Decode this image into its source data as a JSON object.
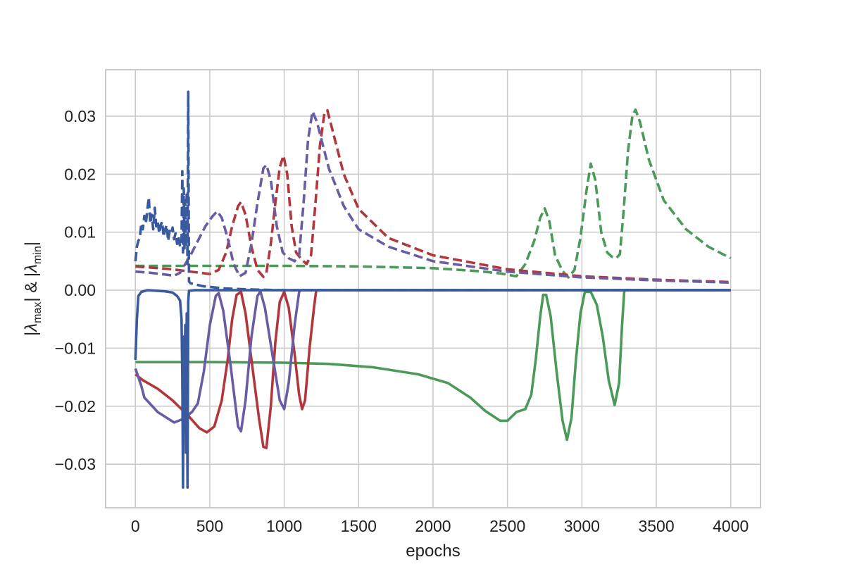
{
  "chart_data": {
    "type": "line",
    "title": "",
    "xlabel": "epochs",
    "ylabel": "|λmax| & |λmin|",
    "ylabel_parts": {
      "bar": "|",
      "lambda": "λ",
      "sub_max": "max",
      "amp": " & ",
      "sub_min": "min"
    },
    "xlim": [
      -200,
      4200
    ],
    "ylim": [
      -0.0375,
      0.038
    ],
    "grid": true,
    "legend": "none",
    "x_ticks": [
      0,
      500,
      1000,
      1500,
      2000,
      2500,
      3000,
      3500,
      4000
    ],
    "x_tick_labels": [
      "0",
      "500",
      "1000",
      "1500",
      "2000",
      "2500",
      "3000",
      "3500",
      "4000"
    ],
    "y_ticks": [
      -0.03,
      -0.02,
      -0.01,
      0.0,
      0.01,
      0.02,
      0.03
    ],
    "y_tick_labels": [
      "−0.03",
      "−0.02",
      "−0.01",
      "0.00",
      "0.01",
      "0.02",
      "0.03"
    ],
    "series": [
      {
        "color": "#4c9a5a",
        "style": "dashed",
        "points": [
          [
            0,
            0.0042
          ],
          [
            500,
            0.0042
          ],
          [
            1000,
            0.0042
          ],
          [
            1500,
            0.0041
          ],
          [
            2000,
            0.0038
          ],
          [
            2300,
            0.0033
          ],
          [
            2450,
            0.0029
          ],
          [
            2560,
            0.0024
          ],
          [
            2620,
            0.0045
          ],
          [
            2680,
            0.0085
          ],
          [
            2720,
            0.0125
          ],
          [
            2750,
            0.0141
          ],
          [
            2780,
            0.012
          ],
          [
            2820,
            0.006
          ],
          [
            2870,
            0.0033
          ],
          [
            2910,
            0.0022
          ],
          [
            2950,
            0.0035
          ],
          [
            2990,
            0.009
          ],
          [
            3030,
            0.017
          ],
          [
            3060,
            0.0218
          ],
          [
            3090,
            0.019
          ],
          [
            3130,
            0.01
          ],
          [
            3170,
            0.0065
          ],
          [
            3200,
            0.0058
          ],
          [
            3230,
            0.0055
          ],
          [
            3255,
            0.0062
          ],
          [
            3280,
            0.0135
          ],
          [
            3310,
            0.024
          ],
          [
            3340,
            0.0302
          ],
          [
            3360,
            0.0311
          ],
          [
            3390,
            0.029
          ],
          [
            3450,
            0.0225
          ],
          [
            3550,
            0.0155
          ],
          [
            3700,
            0.0105
          ],
          [
            3850,
            0.0075
          ],
          [
            4000,
            0.0055
          ]
        ]
      },
      {
        "color": "#4c9a5a",
        "style": "solid",
        "points": [
          [
            0,
            -0.0124
          ],
          [
            500,
            -0.0124
          ],
          [
            1000,
            -0.0125
          ],
          [
            1300,
            -0.0127
          ],
          [
            1600,
            -0.0133
          ],
          [
            1900,
            -0.0145
          ],
          [
            2100,
            -0.016
          ],
          [
            2250,
            -0.0185
          ],
          [
            2350,
            -0.0208
          ],
          [
            2450,
            -0.0225
          ],
          [
            2500,
            -0.0225
          ],
          [
            2560,
            -0.021
          ],
          [
            2620,
            -0.0205
          ],
          [
            2660,
            -0.018
          ],
          [
            2690,
            -0.012
          ],
          [
            2720,
            -0.0045
          ],
          [
            2740,
            -0.0008
          ],
          [
            2760,
            -0.0008
          ],
          [
            2790,
            -0.0045
          ],
          [
            2830,
            -0.014
          ],
          [
            2870,
            -0.0225
          ],
          [
            2900,
            -0.0258
          ],
          [
            2930,
            -0.022
          ],
          [
            2960,
            -0.012
          ],
          [
            2990,
            -0.004
          ],
          [
            3020,
            -0.0003
          ],
          [
            3060,
            -0.0003
          ],
          [
            3100,
            -0.0025
          ],
          [
            3140,
            -0.008
          ],
          [
            3180,
            -0.0155
          ],
          [
            3220,
            -0.0198
          ],
          [
            3250,
            -0.016
          ],
          [
            3270,
            -0.006
          ],
          [
            3285,
            0.0
          ],
          [
            3400,
            0.0
          ],
          [
            4000,
            0.0
          ]
        ]
      },
      {
        "color": "#b1373d",
        "style": "dashed",
        "points": [
          [
            0,
            0.0041
          ],
          [
            100,
            0.0039
          ],
          [
            250,
            0.0036
          ],
          [
            400,
            0.0031
          ],
          [
            500,
            0.0028
          ],
          [
            560,
            0.0035
          ],
          [
            610,
            0.0065
          ],
          [
            650,
            0.011
          ],
          [
            690,
            0.0145
          ],
          [
            710,
            0.0152
          ],
          [
            740,
            0.013
          ],
          [
            780,
            0.0075
          ],
          [
            820,
            0.0035
          ],
          [
            860,
            0.0023
          ],
          [
            880,
            0.003
          ],
          [
            910,
            0.008
          ],
          [
            940,
            0.015
          ],
          [
            970,
            0.0212
          ],
          [
            995,
            0.0232
          ],
          [
            1020,
            0.02
          ],
          [
            1050,
            0.011
          ],
          [
            1080,
            0.0065
          ],
          [
            1110,
            0.0055
          ],
          [
            1150,
            0.0045
          ],
          [
            1180,
            0.006
          ],
          [
            1210,
            0.015
          ],
          [
            1240,
            0.025
          ],
          [
            1270,
            0.0305
          ],
          [
            1290,
            0.031
          ],
          [
            1320,
            0.028
          ],
          [
            1400,
            0.02
          ],
          [
            1500,
            0.014
          ],
          [
            1700,
            0.009
          ],
          [
            2000,
            0.006
          ],
          [
            2500,
            0.0036
          ],
          [
            3000,
            0.0024
          ],
          [
            3500,
            0.0018
          ],
          [
            4000,
            0.0014
          ]
        ]
      },
      {
        "color": "#b1373d",
        "style": "solid",
        "points": [
          [
            0,
            -0.0145
          ],
          [
            50,
            -0.0155
          ],
          [
            150,
            -0.017
          ],
          [
            250,
            -0.019
          ],
          [
            350,
            -0.0215
          ],
          [
            430,
            -0.0238
          ],
          [
            480,
            -0.0245
          ],
          [
            530,
            -0.0235
          ],
          [
            580,
            -0.019
          ],
          [
            620,
            -0.012
          ],
          [
            650,
            -0.005
          ],
          [
            680,
            -0.0008
          ],
          [
            710,
            -0.0003
          ],
          [
            740,
            -0.004
          ],
          [
            780,
            -0.012
          ],
          [
            830,
            -0.022
          ],
          [
            860,
            -0.027
          ],
          [
            880,
            -0.0272
          ],
          [
            910,
            -0.02
          ],
          [
            940,
            -0.009
          ],
          [
            970,
            -0.002
          ],
          [
            1000,
            -0.0003
          ],
          [
            1030,
            -0.003
          ],
          [
            1070,
            -0.011
          ],
          [
            1100,
            -0.018
          ],
          [
            1120,
            -0.0205
          ],
          [
            1140,
            -0.019
          ],
          [
            1170,
            -0.01
          ],
          [
            1200,
            -0.003
          ],
          [
            1215,
            0.0
          ],
          [
            1300,
            0.0
          ],
          [
            4000,
            0.0
          ]
        ]
      },
      {
        "color": "#6a5ba3",
        "style": "dashed",
        "points": [
          [
            0,
            0.0032
          ],
          [
            100,
            0.003
          ],
          [
            200,
            0.0027
          ],
          [
            260,
            0.0025
          ],
          [
            300,
            0.003
          ],
          [
            370,
            0.006
          ],
          [
            420,
            0.0085
          ],
          [
            470,
            0.011
          ],
          [
            520,
            0.0128
          ],
          [
            550,
            0.0136
          ],
          [
            580,
            0.0125
          ],
          [
            620,
            0.009
          ],
          [
            660,
            0.0045
          ],
          [
            700,
            0.0024
          ],
          [
            740,
            0.003
          ],
          [
            780,
            0.008
          ],
          [
            820,
            0.015
          ],
          [
            860,
            0.021
          ],
          [
            880,
            0.0216
          ],
          [
            910,
            0.019
          ],
          [
            950,
            0.011
          ],
          [
            990,
            0.0065
          ],
          [
            1030,
            0.0055
          ],
          [
            1070,
            0.005
          ],
          [
            1100,
            0.006
          ],
          [
            1130,
            0.015
          ],
          [
            1160,
            0.026
          ],
          [
            1190,
            0.0308
          ],
          [
            1220,
            0.029
          ],
          [
            1300,
            0.021
          ],
          [
            1400,
            0.0145
          ],
          [
            1500,
            0.0105
          ],
          [
            1700,
            0.0075
          ],
          [
            2000,
            0.005
          ],
          [
            2500,
            0.0032
          ],
          [
            3000,
            0.0022
          ],
          [
            3500,
            0.0017
          ],
          [
            4000,
            0.0013
          ]
        ]
      },
      {
        "color": "#6a5ba3",
        "style": "solid",
        "points": [
          [
            0,
            -0.0135
          ],
          [
            40,
            -0.0165
          ],
          [
            60,
            -0.0185
          ],
          [
            150,
            -0.021
          ],
          [
            260,
            -0.0228
          ],
          [
            320,
            -0.0222
          ],
          [
            380,
            -0.021
          ],
          [
            420,
            -0.0195
          ],
          [
            460,
            -0.014
          ],
          [
            500,
            -0.006
          ],
          [
            540,
            -0.001
          ],
          [
            560,
            -0.0005
          ],
          [
            590,
            -0.0035
          ],
          [
            640,
            -0.013
          ],
          [
            690,
            -0.0235
          ],
          [
            710,
            -0.0243
          ],
          [
            740,
            -0.019
          ],
          [
            780,
            -0.008
          ],
          [
            820,
            -0.001
          ],
          [
            840,
            -0.0002
          ],
          [
            870,
            -0.003
          ],
          [
            920,
            -0.011
          ],
          [
            970,
            -0.019
          ],
          [
            1000,
            -0.0205
          ],
          [
            1030,
            -0.016
          ],
          [
            1070,
            -0.006
          ],
          [
            1100,
            -0.0003
          ],
          [
            1110,
            0.0
          ],
          [
            1300,
            0.0
          ],
          [
            4000,
            0.0
          ]
        ]
      },
      {
        "color": "#3a5a9f",
        "style": "dashed",
        "points": [
          [
            0,
            0.005
          ],
          [
            10,
            0.0075
          ],
          [
            20,
            0.0085
          ],
          [
            30,
            0.009
          ],
          [
            40,
            0.0115
          ],
          [
            50,
            0.0105
          ],
          [
            60,
            0.0128
          ],
          [
            70,
            0.0115
          ],
          [
            80,
            0.0138
          ],
          [
            90,
            0.016
          ],
          [
            100,
            0.0115
          ],
          [
            110,
            0.013
          ],
          [
            120,
            0.0105
          ],
          [
            130,
            0.0142
          ],
          [
            140,
            0.011
          ],
          [
            150,
            0.0118
          ],
          [
            160,
            0.0098
          ],
          [
            170,
            0.0112
          ],
          [
            180,
            0.0118
          ],
          [
            190,
            0.0092
          ],
          [
            200,
            0.0105
          ],
          [
            210,
            0.0112
          ],
          [
            220,
            0.0085
          ],
          [
            230,
            0.0102
          ],
          [
            240,
            0.0098
          ],
          [
            250,
            0.0108
          ],
          [
            260,
            0.0088
          ],
          [
            270,
            0.0098
          ],
          [
            280,
            0.008
          ],
          [
            290,
            0.0092
          ],
          [
            300,
            0.0075
          ],
          [
            310,
            0.0085
          ],
          [
            315,
            0.0205
          ],
          [
            320,
            0.0065
          ],
          [
            325,
            0.0175
          ],
          [
            330,
            0.0072
          ],
          [
            335,
            0.0155
          ],
          [
            340,
            0.0075
          ],
          [
            345,
            0.017
          ],
          [
            350,
            0.0045
          ],
          [
            355,
            0.0342
          ],
          [
            360,
            0.0015
          ],
          [
            370,
            0.0012
          ],
          [
            450,
            0.0007
          ],
          [
            600,
            0.0003
          ],
          [
            800,
            0.0001
          ],
          [
            1000,
            0.0
          ],
          [
            4000,
            0.0
          ]
        ]
      },
      {
        "color": "#3a5a9f",
        "style": "solid",
        "points": [
          [
            0,
            -0.012
          ],
          [
            10,
            -0.005
          ],
          [
            20,
            -0.001
          ],
          [
            40,
            -0.0003
          ],
          [
            80,
            0.0
          ],
          [
            150,
            -0.0001
          ],
          [
            200,
            -0.0002
          ],
          [
            250,
            -0.0004
          ],
          [
            280,
            -0.001
          ],
          [
            300,
            -0.0018
          ],
          [
            310,
            -0.005
          ],
          [
            315,
            -0.015
          ],
          [
            320,
            -0.034
          ],
          [
            325,
            -0.008
          ],
          [
            330,
            -0.02
          ],
          [
            335,
            -0.006
          ],
          [
            340,
            -0.028
          ],
          [
            345,
            -0.004
          ],
          [
            350,
            -0.034
          ],
          [
            355,
            -0.002
          ],
          [
            360,
            -0.0001
          ],
          [
            400,
            0.0
          ],
          [
            4000,
            0.0
          ]
        ]
      }
    ]
  }
}
